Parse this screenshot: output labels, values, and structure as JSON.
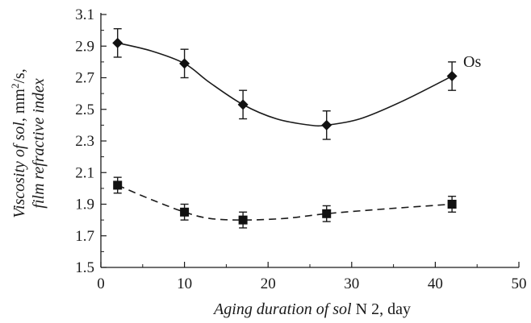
{
  "chart_data": {
    "type": "line",
    "xlabel_parts": [
      "Aging duration of sol",
      " N 2, day"
    ],
    "ylabel_line1_parts": [
      "Viscosity of sol",
      ", mm",
      "2",
      "/s,"
    ],
    "ylabel_line2": "film refractive index",
    "xlim": [
      0,
      50
    ],
    "ylim": [
      1.5,
      3.1
    ],
    "xticks": [
      0,
      10,
      20,
      30,
      40,
      50
    ],
    "yticks": [
      1.5,
      1.7,
      1.9,
      2.1,
      2.3,
      2.5,
      2.7,
      2.9,
      3.1
    ],
    "ytick_labels": [
      "1.5",
      "1.7",
      "1.9",
      "2.1",
      "2.3",
      "2.5",
      "2.7",
      "2.9",
      "3.1"
    ],
    "grid": false,
    "annotation": "Os",
    "series": [
      {
        "marker": "diamond",
        "line": "solid",
        "x": [
          2,
          10,
          17,
          27,
          42
        ],
        "y": [
          2.92,
          2.79,
          2.53,
          2.4,
          2.71
        ],
        "err": [
          0.09,
          0.09,
          0.09,
          0.09,
          0.09
        ],
        "curve": [
          [
            2,
            2.92
          ],
          [
            6,
            2.87
          ],
          [
            10,
            2.79
          ],
          [
            13,
            2.67
          ],
          [
            17,
            2.53
          ],
          [
            21,
            2.44
          ],
          [
            25,
            2.4
          ],
          [
            27,
            2.4
          ],
          [
            31,
            2.44
          ],
          [
            36,
            2.55
          ],
          [
            42,
            2.71
          ]
        ]
      },
      {
        "marker": "square",
        "line": "dashed",
        "x": [
          2,
          10,
          17,
          27,
          42
        ],
        "y": [
          2.02,
          1.85,
          1.8,
          1.84,
          1.9
        ],
        "err": [
          0.05,
          0.05,
          0.05,
          0.05,
          0.05
        ],
        "curve": [
          [
            2,
            2.02
          ],
          [
            6,
            1.93
          ],
          [
            10,
            1.85
          ],
          [
            13,
            1.81
          ],
          [
            17,
            1.8
          ],
          [
            22,
            1.81
          ],
          [
            27,
            1.84
          ],
          [
            34,
            1.87
          ],
          [
            42,
            1.9
          ]
        ]
      }
    ]
  }
}
